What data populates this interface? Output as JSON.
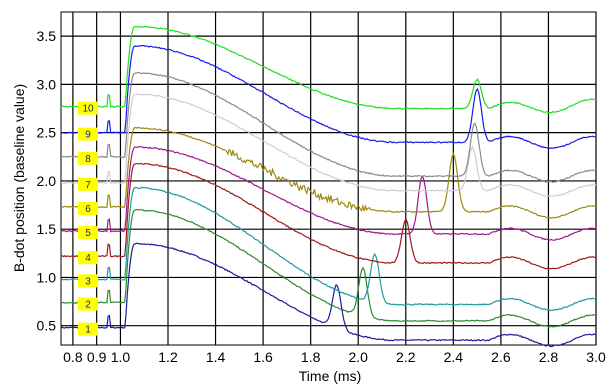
{
  "chart_data": {
    "type": "line",
    "title": "",
    "xlabel": "Time (ms)",
    "ylabel": "B-dot position (baseline value)",
    "xlim": [
      0.75,
      3.0
    ],
    "ylim": [
      0.3,
      3.75
    ],
    "x_ticks": [
      0.8,
      0.9,
      1.0,
      1.2,
      1.4,
      1.6,
      1.8,
      2.0,
      2.2,
      2.4,
      2.6,
      2.8,
      3.0
    ],
    "x_tick_labels": [
      "0.8",
      "0.9",
      "1.0",
      "1.2",
      "1.4",
      "1.6",
      "1.8",
      "2.0",
      "2.2",
      "2.4",
      "2.6",
      "2.8",
      "3.0"
    ],
    "y_ticks": [
      0.5,
      1.0,
      1.5,
      2.0,
      2.5,
      3.0,
      3.5
    ],
    "y_tick_labels": [
      "0.5",
      "1.0",
      "1.5",
      "2.0",
      "2.5",
      "3.0",
      "3.5"
    ],
    "grid": true,
    "legend": "badges at left",
    "series": [
      {
        "name": "1",
        "color": "#1a1a9e",
        "baseline": 0.48,
        "peak": 1.35,
        "late": 0.35,
        "bump_x": 1.91,
        "bump_h": 0.45
      },
      {
        "name": "2",
        "color": "#2e8b2e",
        "baseline": 0.74,
        "peak": 1.7,
        "late": 0.55,
        "bump_x": 2.02,
        "bump_h": 0.5
      },
      {
        "name": "3",
        "color": "#1f9a9e",
        "baseline": 0.98,
        "peak": 1.93,
        "late": 0.72,
        "bump_x": 2.07,
        "bump_h": 0.5
      },
      {
        "name": "4",
        "color": "#9e1a1a",
        "baseline": 1.22,
        "peak": 2.18,
        "late": 1.15,
        "bump_x": 2.2,
        "bump_h": 0.45
      },
      {
        "name": "5",
        "color": "#9e1a8e",
        "baseline": 1.48,
        "peak": 2.35,
        "late": 1.45,
        "bump_x": 2.27,
        "bump_h": 0.6
      },
      {
        "name": "6",
        "color": "#9e8a10",
        "baseline": 1.73,
        "peak": 2.55,
        "late": 1.68,
        "bump_x": 2.4,
        "bump_h": 0.6
      },
      {
        "name": "7",
        "color": "#d8c8d8",
        "baseline": 1.98,
        "peak": 2.9,
        "late": 1.9,
        "bump_x": 2.48,
        "bump_h": 0.45
      },
      {
        "name": "8",
        "color": "#8a8a8a",
        "baseline": 2.25,
        "peak": 3.12,
        "late": 2.05,
        "bump_x": 2.49,
        "bump_h": 0.55
      },
      {
        "name": "9",
        "color": "#1a1ae8",
        "baseline": 2.5,
        "peak": 3.4,
        "late": 2.4,
        "bump_x": 2.5,
        "bump_h": 0.55
      },
      {
        "name": "10",
        "color": "#22dd22",
        "baseline": 2.77,
        "peak": 3.6,
        "late": 2.75,
        "bump_x": 2.5,
        "bump_h": 0.3
      }
    ],
    "badge_fill": "#ffff00"
  }
}
